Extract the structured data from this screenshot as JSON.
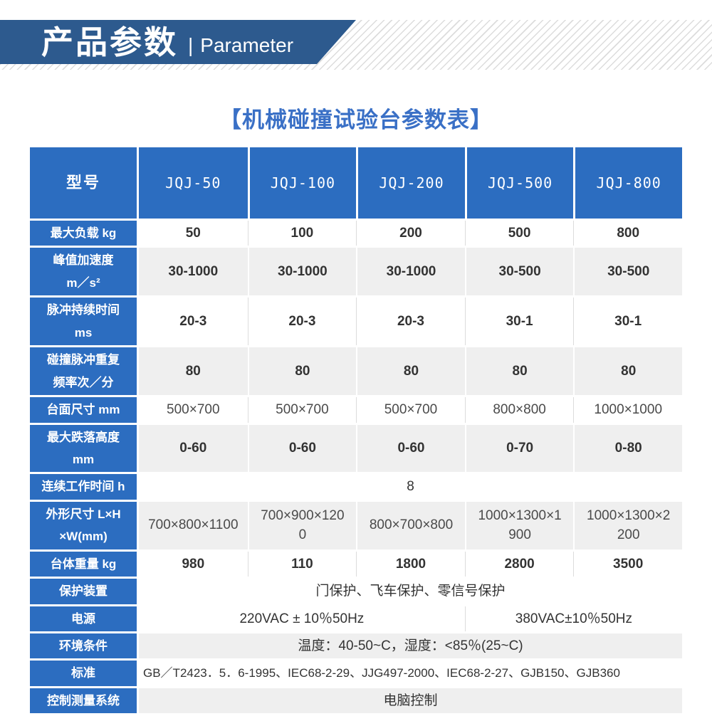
{
  "banner": {
    "title_cn": "产品参数",
    "separator": "|",
    "title_en": "Parameter"
  },
  "page_title": "【机械碰撞试验台参数表】",
  "colors": {
    "banner_blue": "#2d5a8e",
    "table_blue": "#2c6dc0",
    "title_blue": "#3a70c6",
    "row_gray": "#efefef"
  },
  "table": {
    "header": {
      "label": "型号",
      "models": [
        "JQJ-50",
        "JQJ-100",
        "JQJ-200",
        "JQJ-500",
        "JQJ-800"
      ]
    },
    "rows": [
      {
        "label": "最大负载 kg",
        "shade": "white",
        "cells": [
          {
            "text": "50"
          },
          {
            "text": "100"
          },
          {
            "text": "200"
          },
          {
            "text": "500"
          },
          {
            "text": "800"
          }
        ]
      },
      {
        "label": "峰值加速度\nm／s²",
        "shade": "gray",
        "cells": [
          {
            "text": "30-1000"
          },
          {
            "text": "30-1000"
          },
          {
            "text": "30-1000"
          },
          {
            "text": "30-500"
          },
          {
            "text": "30-500"
          }
        ]
      },
      {
        "label": "脉冲持续时间\nms",
        "shade": "white",
        "cells": [
          {
            "text": "20-3"
          },
          {
            "text": "20-3"
          },
          {
            "text": "20-3"
          },
          {
            "text": "30-1"
          },
          {
            "text": "30-1"
          }
        ]
      },
      {
        "label": "碰撞脉冲重复\n频率次／分",
        "shade": "gray",
        "cells": [
          {
            "text": "80"
          },
          {
            "text": "80"
          },
          {
            "text": "80"
          },
          {
            "text": "80"
          },
          {
            "text": "80"
          }
        ]
      },
      {
        "label": "台面尺寸 mm",
        "shade": "white",
        "cells": [
          {
            "text": "500×700"
          },
          {
            "text": "500×700"
          },
          {
            "text": "500×700"
          },
          {
            "text": "800×800"
          },
          {
            "text": "1000×1000"
          }
        ]
      },
      {
        "label": "最大跌落高度\nmm",
        "shade": "gray",
        "cells": [
          {
            "text": "0-60"
          },
          {
            "text": "0-60"
          },
          {
            "text": "0-60"
          },
          {
            "text": "0-70"
          },
          {
            "text": "0-80"
          }
        ]
      },
      {
        "label": "连续工作时间 h",
        "shade": "white",
        "cells": [
          {
            "text": "8",
            "span": 5
          }
        ]
      },
      {
        "label": "外形尺寸 L×H\n×W(mm)",
        "shade": "gray",
        "cells": [
          {
            "text": "700×800×1100"
          },
          {
            "text": "700×900×1200"
          },
          {
            "text": "800×700×800"
          },
          {
            "text": "1000×1300×1900"
          },
          {
            "text": "1000×1300×2200"
          }
        ]
      },
      {
        "label": "台体重量 kg",
        "shade": "white",
        "cells": [
          {
            "text": "980"
          },
          {
            "text": "110"
          },
          {
            "text": "1800"
          },
          {
            "text": "2800"
          },
          {
            "text": "3500"
          }
        ]
      },
      {
        "label": "保护装置",
        "shade": "white",
        "cells": [
          {
            "text": "门保护、飞车保护、零信号保护",
            "span": 5
          }
        ]
      },
      {
        "label": "电源",
        "shade": "white",
        "cells": [
          {
            "text": "220VAC ± 10％50Hz",
            "span": 3
          },
          {
            "text": "380VAC±10％50Hz",
            "span": 2
          }
        ]
      },
      {
        "label": "环境条件",
        "shade": "gray",
        "cells": [
          {
            "text": "温度：40-50~C，湿度：<85％(25~C)",
            "span": 5
          }
        ]
      },
      {
        "label": "标准",
        "shade": "white",
        "cells": [
          {
            "text": "GB／T2423．5．6-1995、IEC68-2-29、JJG497-2000、IEC68-2-27、GJB150、GJB360",
            "span": 5,
            "align": "left"
          }
        ]
      },
      {
        "label": "控制测量系统",
        "shade": "gray",
        "cells": [
          {
            "text": "电脑控制",
            "span": 5
          }
        ]
      }
    ]
  }
}
